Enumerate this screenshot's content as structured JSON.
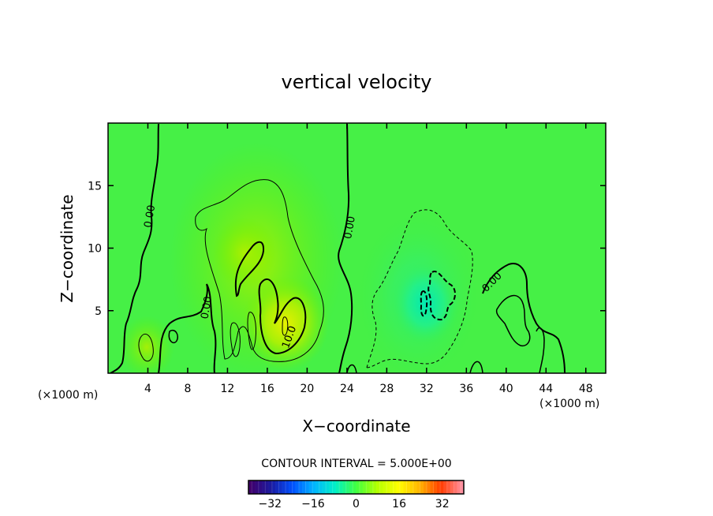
{
  "chart_data": {
    "type": "heatmap",
    "title": "vertical velocity",
    "xlabel": "X−coordinate",
    "ylabel": "Z−coordinate",
    "x_unit_left": "(×1000 m)",
    "x_unit_right": "(×1000 m)",
    "xlim": [
      0,
      50
    ],
    "ylim": [
      0,
      20
    ],
    "x_ticks": [
      {
        "value": 4,
        "label": "4"
      },
      {
        "value": 8,
        "label": "8"
      },
      {
        "value": 12,
        "label": "12"
      },
      {
        "value": 16,
        "label": "16"
      },
      {
        "value": 20,
        "label": "20"
      },
      {
        "value": 24,
        "label": "24"
      },
      {
        "value": 28,
        "label": "28"
      },
      {
        "value": 32,
        "label": "32"
      },
      {
        "value": 36,
        "label": "36"
      },
      {
        "value": 40,
        "label": "40"
      },
      {
        "value": 44,
        "label": "44"
      },
      {
        "value": 48,
        "label": "48"
      }
    ],
    "y_ticks": [
      {
        "value": 5,
        "label": "5"
      },
      {
        "value": 10,
        "label": "10"
      },
      {
        "value": 15,
        "label": "15"
      }
    ],
    "contour_interval_text": "CONTOUR INTERVAL = 5.000E+00",
    "contour_labels": [
      {
        "text": "0.00",
        "x": 4.5,
        "y": 12.5,
        "angle": -80
      },
      {
        "text": "0.00",
        "x": 10.2,
        "y": 5.2,
        "angle": -80
      },
      {
        "text": "10.0",
        "x": 18.5,
        "y": 2.8,
        "angle": -70
      },
      {
        "text": "0.00",
        "x": 24.6,
        "y": 11.6,
        "angle": -80
      },
      {
        "text": "0.00",
        "x": 38.8,
        "y": 7.1,
        "angle": -45
      }
    ],
    "colorbar": {
      "range": [
        -40,
        40
      ],
      "tick_values": [
        -32,
        -16,
        0,
        16,
        32
      ],
      "tick_labels": [
        "−32",
        "−16",
        "0",
        "16",
        "32"
      ],
      "colormap": [
        "#40006a",
        "#1a1aa0",
        "#0050ff",
        "#00b4ff",
        "#00f0c8",
        "#40ff40",
        "#b4ff00",
        "#ffff00",
        "#ffb400",
        "#ff3c00",
        "#ff90a0"
      ]
    },
    "field_features": [
      {
        "name": "updraft",
        "x": 17.5,
        "z": 4.0,
        "peak": 14
      },
      {
        "name": "updraft",
        "x": 14.0,
        "z": 10.0,
        "peak": 8
      },
      {
        "name": "updraft",
        "x": 4.0,
        "z": 2.0,
        "peak": 6
      },
      {
        "name": "downdraft",
        "x": 32.5,
        "z": 6.0,
        "peak": -10
      },
      {
        "name": "downdraft",
        "x": 41.0,
        "z": 5.0,
        "peak": -3
      }
    ]
  }
}
